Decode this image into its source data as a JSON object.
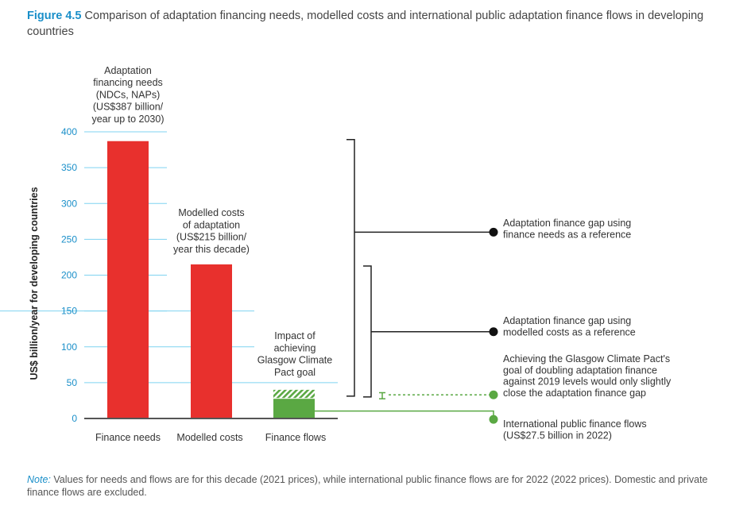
{
  "figure": {
    "number": "Figure 4.5",
    "title": "Comparison of adaptation financing needs, modelled costs and international public adaptation finance flows in developing countries"
  },
  "note": {
    "label": "Note:",
    "text": "Values for needs and flows are for this decade (2021 prices), while international public finance flows are for 2022 (2022 prices). Domestic and private finance flows are excluded."
  },
  "colors": {
    "bar": "#e8302d",
    "flow": "#5aa843",
    "grid": "#7fd3f0",
    "tick": "#1a8fc9",
    "bracket": "#222222"
  },
  "chart_data": {
    "type": "bar",
    "ylabel": "US$ billion/year for developing countries",
    "ylim": [
      0,
      400
    ],
    "yticks": [
      0,
      50,
      100,
      150,
      200,
      250,
      300,
      350,
      400
    ],
    "grid": true,
    "categories": [
      "Finance needs",
      "Modelled costs",
      "Finance flows"
    ],
    "values": [
      387,
      215,
      27.5
    ],
    "bar_labels": [
      [
        "Adaptation",
        "financing needs",
        "(NDCs, NAPs)",
        "(US$387 billion/",
        "year up to 2030)"
      ],
      [
        "Modelled costs",
        "of adaptation",
        "(US$215 billion/",
        "year this decade)"
      ],
      [
        "Impact of",
        "achieving",
        "Glasgow Climate",
        "Pact goal"
      ]
    ],
    "glasgow_goal_top": 40,
    "annotations": [
      {
        "lines": [
          "Adaptation finance gap using",
          "finance needs as a reference"
        ],
        "value": 260
      },
      {
        "lines": [
          "Adaptation finance gap using",
          "modelled costs as a reference"
        ],
        "value": 121
      },
      {
        "lines": [
          "Achieving the Glasgow Climate Pact's",
          "goal of doubling adaptation finance",
          "against 2019 levels would only slightly",
          "close the adaptation finance gap"
        ],
        "value": 33
      },
      {
        "lines": [
          "International public finance flows",
          "(US$27.5 billion in 2022)"
        ],
        "value": 12
      }
    ]
  }
}
